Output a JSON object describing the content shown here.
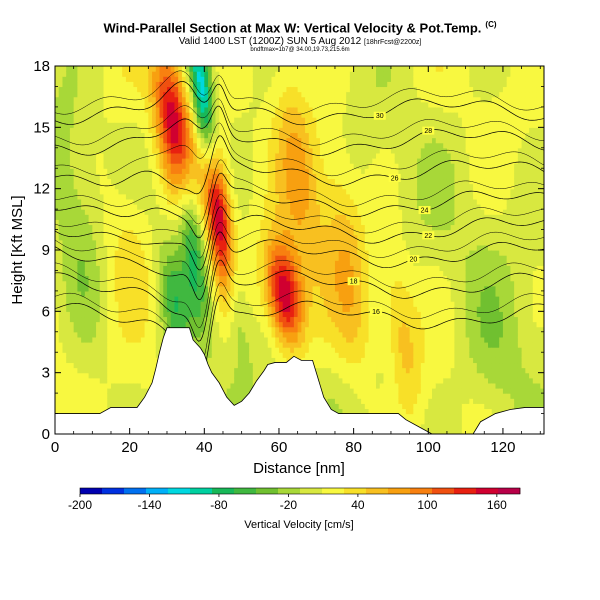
{
  "header": {
    "title": "Wind-Parallel Section at Max W: Vertical Velocity & Pot.Temp.",
    "copyright": "(C)",
    "valid": "Valid 1400 LST (1200Z) SUN 5 Aug 2012",
    "forecast": "[18hrFcst@2200z]",
    "run_info": "bndftmax=1b7@ 34.00,19.73,215.6m"
  },
  "chart_data": {
    "type": "heatmap",
    "title": "Wind-Parallel Section at Max W: Vertical Velocity & Pot.Temp.",
    "xlabel": "Distance [nm]",
    "ylabel": "Height [Kft MSL]",
    "xlim": [
      0,
      131
    ],
    "ylim": [
      0,
      18
    ],
    "x_ticks": [
      0,
      20,
      40,
      60,
      80,
      100,
      120
    ],
    "y_ticks": [
      0,
      3,
      6,
      9,
      12,
      15,
      18
    ],
    "colorbar": {
      "label": "Vertical Velocity [cm/s]",
      "range": [
        -200,
        180
      ],
      "tick_values": [
        -200,
        -140,
        -80,
        -20,
        40,
        100,
        160
      ],
      "colors": [
        "#0000b0",
        "#0030e0",
        "#0070f0",
        "#00b0f8",
        "#00d8e0",
        "#00d0a0",
        "#18b858",
        "#40b840",
        "#70c030",
        "#a8d838",
        "#d8e840",
        "#f8f840",
        "#f8e028",
        "#f8c020",
        "#f8a010",
        "#f88010",
        "#f05010",
        "#e82010",
        "#d00030",
        "#b80048"
      ]
    },
    "terrain": [
      [
        0,
        1
      ],
      [
        12,
        1
      ],
      [
        15,
        1.3
      ],
      [
        22,
        1.3
      ],
      [
        24,
        1.8
      ],
      [
        26,
        2.5
      ],
      [
        27,
        3.2
      ],
      [
        28,
        4
      ],
      [
        29,
        4.7
      ],
      [
        30,
        5.2
      ],
      [
        36,
        5.2
      ],
      [
        37,
        4.6
      ],
      [
        39,
        4.2
      ],
      [
        40,
        3.9
      ],
      [
        41,
        3.4
      ],
      [
        42,
        3
      ],
      [
        44,
        2.5
      ],
      [
        46,
        1.8
      ],
      [
        48,
        1.4
      ],
      [
        50,
        1.6
      ],
      [
        52,
        2
      ],
      [
        54,
        2.6
      ],
      [
        56,
        3.1
      ],
      [
        57,
        3.4
      ],
      [
        59,
        3.5
      ],
      [
        62,
        3.5
      ],
      [
        64,
        3.8
      ],
      [
        66,
        3.6
      ],
      [
        69,
        3.6
      ],
      [
        70,
        3
      ],
      [
        71,
        2.4
      ],
      [
        72,
        1.8
      ],
      [
        74,
        1.2
      ],
      [
        76,
        1
      ],
      [
        92,
        1
      ],
      [
        94,
        0.7
      ],
      [
        98,
        0.3
      ],
      [
        101,
        0
      ],
      [
        112,
        0
      ],
      [
        114,
        0.6
      ],
      [
        118,
        1
      ],
      [
        122,
        1.2
      ],
      [
        126,
        1.3
      ],
      [
        131,
        1.3
      ]
    ],
    "updrafts": [
      {
        "x": 31.5,
        "z": 15.5,
        "sx": 3.2,
        "sz": 2.5,
        "w": 140
      },
      {
        "x": 44,
        "z": 10.5,
        "sx": 2.4,
        "sz": 2.6,
        "w": 170
      },
      {
        "x": 61.5,
        "z": 6.8,
        "sx": 3.4,
        "sz": 1.8,
        "w": 165
      },
      {
        "x": 65,
        "z": 13.5,
        "sx": 4,
        "sz": 4,
        "w": 60
      },
      {
        "x": 78,
        "z": 9,
        "sx": 4,
        "sz": 5,
        "w": 50
      },
      {
        "x": 93,
        "z": 5,
        "sx": 3,
        "sz": 3,
        "w": 45
      },
      {
        "x": 20,
        "z": 9,
        "sx": 5,
        "sz": 3,
        "w": 40
      }
    ],
    "downdrafts": [
      {
        "x": 39.5,
        "z": 16.5,
        "sx": 2,
        "sz": 2.5,
        "w": -130
      },
      {
        "x": 37,
        "z": 9,
        "sx": 2.2,
        "sz": 2.5,
        "w": -70
      },
      {
        "x": 32,
        "z": 6.5,
        "sx": 2.5,
        "sz": 2,
        "w": -50
      },
      {
        "x": 48,
        "z": 7,
        "sx": 2,
        "sz": 2.5,
        "w": -45
      },
      {
        "x": 6,
        "z": 10,
        "sx": 4,
        "sz": 5,
        "w": -25
      },
      {
        "x": 118,
        "z": 3,
        "sx": 6,
        "sz": 3,
        "w": -25
      },
      {
        "x": 86,
        "z": 2,
        "sx": 5,
        "sz": 2,
        "w": -20
      }
    ],
    "isentropes": [
      {
        "label": "16",
        "base": 5.8,
        "label_x": 86
      },
      {
        "label": "18",
        "base": 7.3,
        "label_x": 80
      },
      {
        "label": "20",
        "base": 8.8,
        "label_x": 96
      },
      {
        "label": "22",
        "base": 10.0,
        "label_x": 100
      },
      {
        "label": "24",
        "base": 11.3,
        "label_x": 99
      },
      {
        "label": "26",
        "base": 12.8,
        "label_x": 91
      },
      {
        "label": "28",
        "base": 14.3,
        "label_x": 100
      },
      {
        "label": "30",
        "base": 15.8,
        "label_x": 87
      }
    ]
  }
}
